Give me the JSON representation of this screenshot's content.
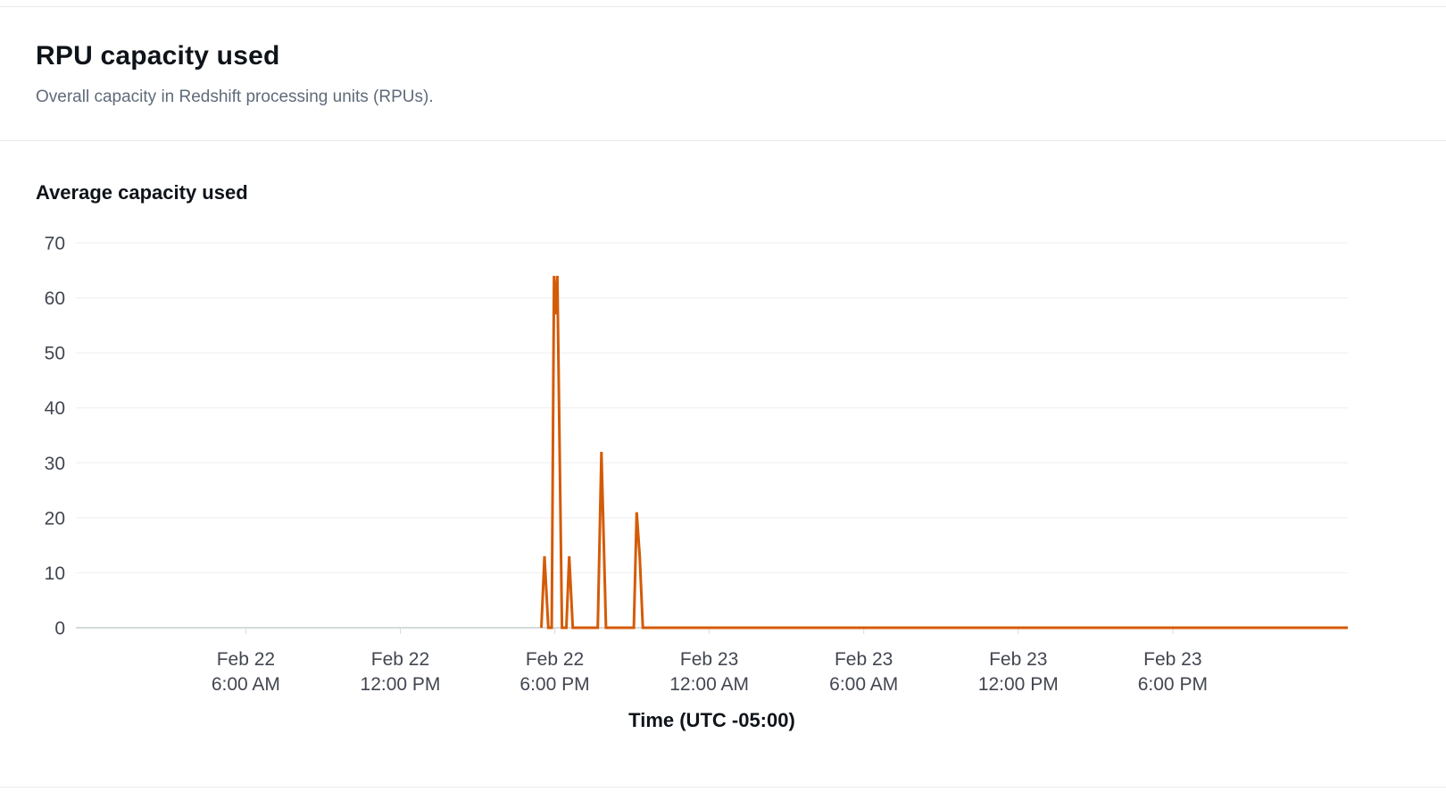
{
  "panel": {
    "title": "RPU capacity used",
    "subtitle": "Overall capacity in Redshift processing units (RPUs)."
  },
  "chart_data": {
    "type": "line",
    "title": "Average capacity used",
    "xlabel": "Time (UTC -05:00)",
    "ylabel": "",
    "ylim": [
      0,
      70
    ],
    "y_ticks": [
      0,
      10,
      20,
      30,
      40,
      50,
      60,
      70
    ],
    "x_domain_hours": [
      -0.6,
      48.8
    ],
    "x_ticks": [
      {
        "hour": 6,
        "label_line1": "Feb 22",
        "label_line2": "6:00 AM"
      },
      {
        "hour": 12,
        "label_line1": "Feb 22",
        "label_line2": "12:00 PM"
      },
      {
        "hour": 18,
        "label_line1": "Feb 22",
        "label_line2": "6:00 PM"
      },
      {
        "hour": 24,
        "label_line1": "Feb 23",
        "label_line2": "12:00 AM"
      },
      {
        "hour": 30,
        "label_line1": "Feb 23",
        "label_line2": "6:00 AM"
      },
      {
        "hour": 36,
        "label_line1": "Feb 23",
        "label_line2": "12:00 PM"
      },
      {
        "hour": 42,
        "label_line1": "Feb 23",
        "label_line2": "6:00 PM"
      }
    ],
    "grid": true,
    "legend": false,
    "series": [
      {
        "name": "Average capacity used",
        "color": "#d45b07",
        "points_hours_value": [
          [
            17.48,
            0
          ],
          [
            17.6,
            13
          ],
          [
            17.75,
            0
          ],
          [
            17.88,
            0
          ],
          [
            17.97,
            64
          ],
          [
            18.03,
            57
          ],
          [
            18.1,
            64
          ],
          [
            18.28,
            0
          ],
          [
            18.45,
            0
          ],
          [
            18.56,
            13
          ],
          [
            18.7,
            0
          ],
          [
            19.67,
            0
          ],
          [
            19.81,
            32
          ],
          [
            19.99,
            0
          ],
          [
            21.07,
            0
          ],
          [
            21.18,
            21
          ],
          [
            21.3,
            13
          ],
          [
            21.42,
            0
          ],
          [
            48.8,
            0
          ]
        ]
      }
    ],
    "colors": {
      "gridline": "#eceef0",
      "baseline": "#d5dbdb",
      "tick_text": "#424650"
    }
  }
}
